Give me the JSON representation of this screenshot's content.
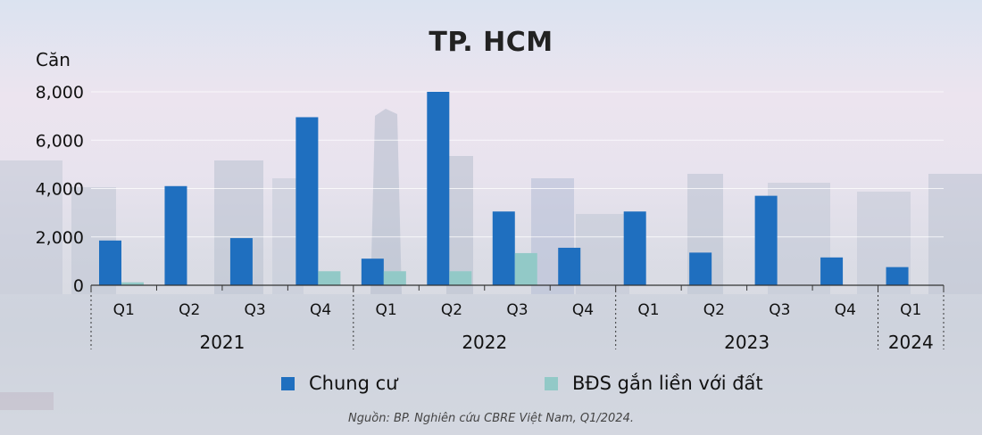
{
  "chart_data": {
    "type": "bar",
    "title": "TP. HCM",
    "ylabel": "Căn",
    "ylim": [
      0,
      8000
    ],
    "yticks": [
      "0",
      "2,000",
      "4,000",
      "6,000",
      "8,000"
    ],
    "ytick_values": [
      0,
      2000,
      4000,
      6000,
      8000
    ],
    "categories": [
      "Q1",
      "Q2",
      "Q3",
      "Q4",
      "Q1",
      "Q2",
      "Q3",
      "Q4",
      "Q1",
      "Q2",
      "Q3",
      "Q4",
      "Q1"
    ],
    "groups": [
      {
        "label": "2021",
        "count": 4
      },
      {
        "label": "2022",
        "count": 4
      },
      {
        "label": "2023",
        "count": 4
      },
      {
        "label": "2024",
        "count": 1
      }
    ],
    "series": [
      {
        "name": "Chung cư",
        "color": "#1f6fbf",
        "values": [
          1850,
          4100,
          1950,
          6950,
          1100,
          8000,
          3050,
          1550,
          3050,
          1350,
          3700,
          1150,
          750
        ]
      },
      {
        "name": "BĐS gắn liền với đất",
        "color": "#92c9c7",
        "values": [
          120,
          0,
          0,
          580,
          580,
          580,
          1330,
          0,
          0,
          0,
          0,
          0,
          0
        ]
      }
    ],
    "grid": true,
    "legend": "bottom",
    "source": "Nguồn: BP. Nghiên cứu CBRE Việt Nam, Q1/2024."
  }
}
